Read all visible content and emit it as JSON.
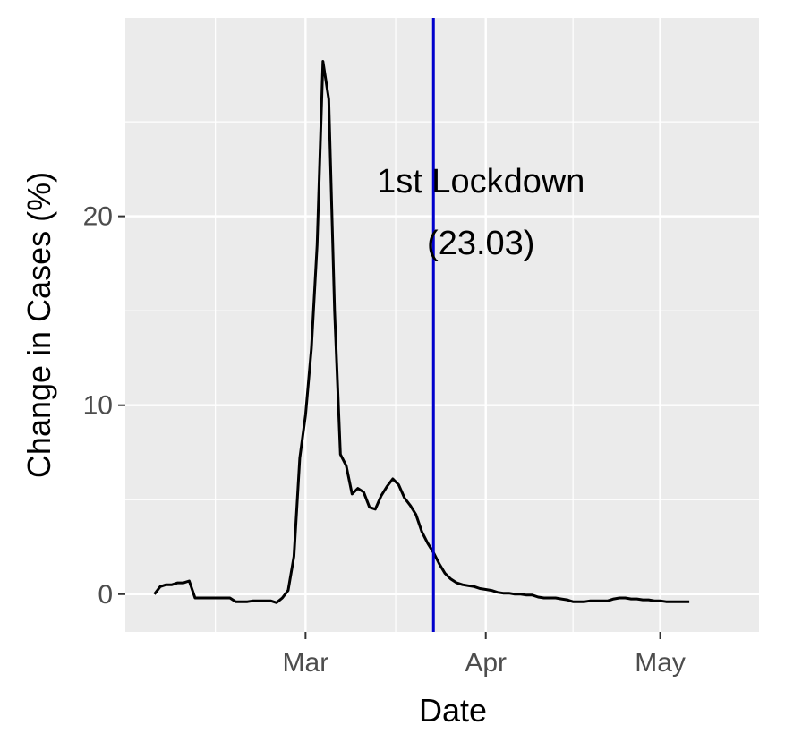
{
  "chart_data": {
    "type": "line",
    "xlabel": "Date",
    "ylabel": "Change in Cases (%)",
    "x_tick_labels": [
      {
        "date": "2020-03-01",
        "label": "Mar"
      },
      {
        "date": "2020-04-01",
        "label": "Apr"
      },
      {
        "date": "2020-05-01",
        "label": "May"
      }
    ],
    "y_ticks": [
      0,
      10,
      20
    ],
    "xlim": [
      "2020-01-30",
      "2020-05-18"
    ],
    "ylim": [
      -2,
      30.5
    ],
    "grid": true,
    "legend": "none",
    "annotation": {
      "line1": "1st Lockdown",
      "line2": "(23.03)",
      "line_date": "2020-03-23",
      "line_color": "#0000cc"
    },
    "series": [
      {
        "color": "#000000",
        "points": [
          [
            "2020-02-04",
            0.0
          ],
          [
            "2020-02-05",
            0.4
          ],
          [
            "2020-02-06",
            0.5
          ],
          [
            "2020-02-07",
            0.5
          ],
          [
            "2020-02-08",
            0.6
          ],
          [
            "2020-02-09",
            0.6
          ],
          [
            "2020-02-10",
            0.7
          ],
          [
            "2020-02-11",
            -0.2
          ],
          [
            "2020-02-12",
            -0.2
          ],
          [
            "2020-02-13",
            -0.2
          ],
          [
            "2020-02-14",
            -0.2
          ],
          [
            "2020-02-15",
            -0.2
          ],
          [
            "2020-02-16",
            -0.2
          ],
          [
            "2020-02-17",
            -0.2
          ],
          [
            "2020-02-18",
            -0.4
          ],
          [
            "2020-02-19",
            -0.4
          ],
          [
            "2020-02-20",
            -0.4
          ],
          [
            "2020-02-21",
            -0.35
          ],
          [
            "2020-02-22",
            -0.35
          ],
          [
            "2020-02-23",
            -0.35
          ],
          [
            "2020-02-24",
            -0.35
          ],
          [
            "2020-02-25",
            -0.45
          ],
          [
            "2020-02-26",
            -0.2
          ],
          [
            "2020-02-27",
            0.2
          ],
          [
            "2020-02-28",
            2.0
          ],
          [
            "2020-02-29",
            7.2
          ],
          [
            "2020-03-01",
            9.5
          ],
          [
            "2020-03-02",
            13.0
          ],
          [
            "2020-03-03",
            18.5
          ],
          [
            "2020-03-04",
            28.2
          ],
          [
            "2020-03-05",
            26.2
          ],
          [
            "2020-03-06",
            15.0
          ],
          [
            "2020-03-07",
            7.4
          ],
          [
            "2020-03-08",
            6.8
          ],
          [
            "2020-03-09",
            5.3
          ],
          [
            "2020-03-10",
            5.6
          ],
          [
            "2020-03-11",
            5.4
          ],
          [
            "2020-03-12",
            4.6
          ],
          [
            "2020-03-13",
            4.5
          ],
          [
            "2020-03-14",
            5.2
          ],
          [
            "2020-03-15",
            5.7
          ],
          [
            "2020-03-16",
            6.1
          ],
          [
            "2020-03-17",
            5.8
          ],
          [
            "2020-03-18",
            5.1
          ],
          [
            "2020-03-19",
            4.7
          ],
          [
            "2020-03-20",
            4.2
          ],
          [
            "2020-03-21",
            3.3
          ],
          [
            "2020-03-22",
            2.7
          ],
          [
            "2020-03-23",
            2.2
          ],
          [
            "2020-03-24",
            1.6
          ],
          [
            "2020-03-25",
            1.1
          ],
          [
            "2020-03-26",
            0.8
          ],
          [
            "2020-03-27",
            0.6
          ],
          [
            "2020-03-28",
            0.5
          ],
          [
            "2020-03-29",
            0.45
          ],
          [
            "2020-03-30",
            0.4
          ],
          [
            "2020-03-31",
            0.3
          ],
          [
            "2020-04-01",
            0.25
          ],
          [
            "2020-04-02",
            0.2
          ],
          [
            "2020-04-03",
            0.1
          ],
          [
            "2020-04-04",
            0.05
          ],
          [
            "2020-04-05",
            0.05
          ],
          [
            "2020-04-06",
            0.0
          ],
          [
            "2020-04-07",
            0.0
          ],
          [
            "2020-04-08",
            -0.05
          ],
          [
            "2020-04-09",
            -0.05
          ],
          [
            "2020-04-10",
            -0.15
          ],
          [
            "2020-04-11",
            -0.2
          ],
          [
            "2020-04-12",
            -0.2
          ],
          [
            "2020-04-13",
            -0.2
          ],
          [
            "2020-04-14",
            -0.25
          ],
          [
            "2020-04-15",
            -0.3
          ],
          [
            "2020-04-16",
            -0.4
          ],
          [
            "2020-04-17",
            -0.4
          ],
          [
            "2020-04-18",
            -0.4
          ],
          [
            "2020-04-19",
            -0.35
          ],
          [
            "2020-04-20",
            -0.35
          ],
          [
            "2020-04-21",
            -0.35
          ],
          [
            "2020-04-22",
            -0.35
          ],
          [
            "2020-04-23",
            -0.25
          ],
          [
            "2020-04-24",
            -0.2
          ],
          [
            "2020-04-25",
            -0.2
          ],
          [
            "2020-04-26",
            -0.25
          ],
          [
            "2020-04-27",
            -0.25
          ],
          [
            "2020-04-28",
            -0.3
          ],
          [
            "2020-04-29",
            -0.3
          ],
          [
            "2020-04-30",
            -0.35
          ],
          [
            "2020-05-01",
            -0.35
          ],
          [
            "2020-05-02",
            -0.4
          ],
          [
            "2020-05-03",
            -0.4
          ],
          [
            "2020-05-04",
            -0.4
          ],
          [
            "2020-05-05",
            -0.4
          ],
          [
            "2020-05-06",
            -0.4
          ]
        ]
      }
    ]
  },
  "colors": {
    "panel_background": "#ebebeb",
    "grid_line": "#ffffff",
    "series_line": "#000000",
    "lockdown_line": "#0000cc"
  }
}
